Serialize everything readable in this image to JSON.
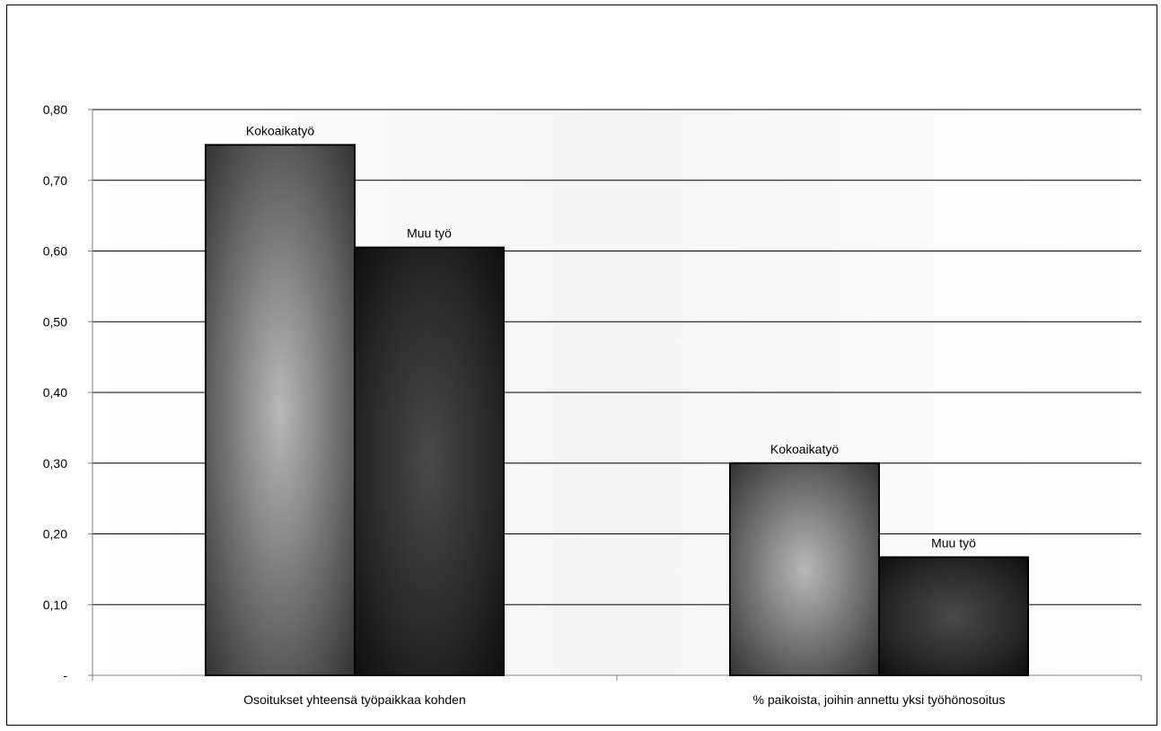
{
  "chart_data": {
    "type": "bar",
    "categories": [
      "Osoitukset yhteensä työpaikkaa kohden",
      "% paikoista, joihin annettu yksi työhönosoitus"
    ],
    "series": [
      {
        "name": "Kokoaikatyö",
        "values": [
          0.75,
          0.3
        ],
        "labels": [
          "Kokoaikatyö",
          "Kokoaikatyö"
        ]
      },
      {
        "name": "Muu työ",
        "values": [
          0.605,
          0.167
        ],
        "labels": [
          "Muu työ",
          "Muu työ"
        ]
      }
    ],
    "ylim": [
      0,
      0.8
    ],
    "yticks": [
      0,
      0.1,
      0.2,
      0.3,
      0.4,
      0.5,
      0.6,
      0.7,
      0.8
    ],
    "ytick_labels": [
      "-",
      "0,10",
      "0,20",
      "0,30",
      "0,40",
      "0,50",
      "0,60",
      "0,70",
      "0,80"
    ],
    "grid": true,
    "legend": "none",
    "colors": {
      "bar_light": "#b5b5b5",
      "bar_dark": "#1a1a1a",
      "gridline": "#000000",
      "axis": "#808080"
    }
  }
}
